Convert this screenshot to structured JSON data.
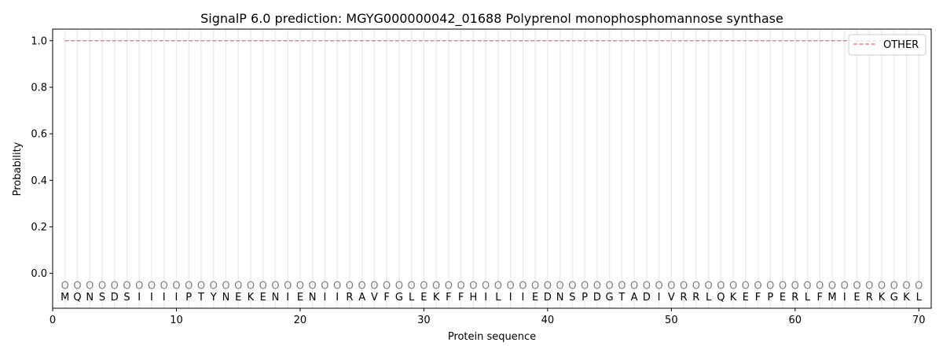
{
  "chart_data": {
    "type": "line",
    "title": "SignalP 6.0 prediction: MGYG000000042_01688 Polyprenol monophosphomannose synthase",
    "xlabel": "Protein sequence",
    "ylabel": "Probability",
    "xlim": [
      0,
      71
    ],
    "ylim": [
      -0.15,
      1.05
    ],
    "xticks": [
      0,
      10,
      20,
      30,
      40,
      50,
      60,
      70
    ],
    "yticks": [
      0.0,
      0.2,
      0.4,
      0.6,
      0.8,
      1.0
    ],
    "ytick_labels": [
      "0.0",
      "0.2",
      "0.4",
      "0.6",
      "0.8",
      "1.0"
    ],
    "grid": "vertical lines at each residue",
    "legend_position": "top-right",
    "series": [
      {
        "name": "OTHER",
        "color": "#f08080",
        "style": "dashed",
        "x_range": [
          1,
          70
        ],
        "value": 1.0
      }
    ],
    "sequence": [
      "M",
      "Q",
      "N",
      "S",
      "D",
      "S",
      "I",
      "I",
      "I",
      "I",
      "P",
      "T",
      "Y",
      "N",
      "E",
      "K",
      "E",
      "N",
      "I",
      "E",
      "N",
      "I",
      "I",
      "R",
      "A",
      "V",
      "F",
      "G",
      "L",
      "E",
      "K",
      "F",
      "F",
      "H",
      "I",
      "L",
      "I",
      "I",
      "E",
      "D",
      "N",
      "S",
      "P",
      "D",
      "G",
      "T",
      "A",
      "D",
      "I",
      "V",
      "R",
      "R",
      "L",
      "Q",
      "K",
      "E",
      "F",
      "P",
      "E",
      "R",
      "L",
      "F",
      "M",
      "I",
      "E",
      "R",
      "K",
      "G",
      "K",
      "L"
    ],
    "predicted_labels": "O",
    "label_marker_value": -0.05,
    "residue_letter_value": -0.1,
    "colors": {
      "marker": "#808080",
      "grid": "#ececec"
    }
  }
}
